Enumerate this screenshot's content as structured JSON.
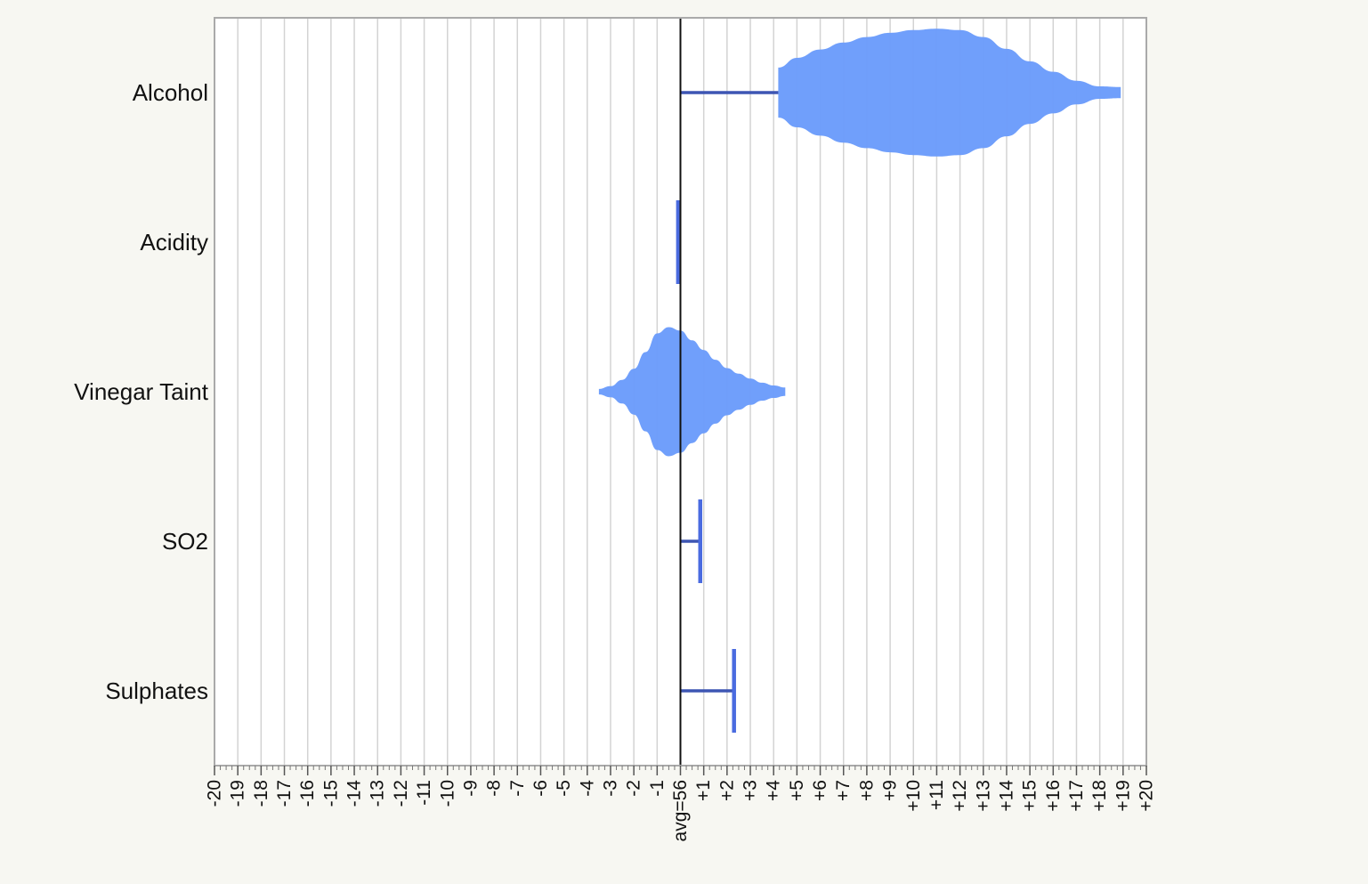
{
  "chart_data": {
    "type": "violin",
    "orientation": "horizontal",
    "categories": [
      "Alcohol",
      "Acidity",
      "Vinegar Taint",
      "SO2",
      "Sulphates"
    ],
    "xlim": [
      -20,
      20
    ],
    "baseline": 0,
    "baseline_label": "avg=56",
    "tick_labels": [
      "-20",
      "-19",
      "-18",
      "-17",
      "-16",
      "-15",
      "-14",
      "-13",
      "-12",
      "-11",
      "-10",
      "-9",
      "-8",
      "-7",
      "-6",
      "-5",
      "-4",
      "-3",
      "-2",
      "-1",
      "avg=56",
      "+1",
      "+2",
      "+3",
      "+4",
      "+5",
      "+6",
      "+7",
      "+8",
      "+9",
      "+10",
      "+11",
      "+12",
      "+13",
      "+14",
      "+15",
      "+16",
      "+17",
      "+18",
      "+19",
      "+20"
    ],
    "grid": true,
    "series": [
      {
        "category": "Alcohol",
        "whisker": [
          0,
          4.2
        ],
        "violin": {
          "x": [
            4.2,
            5,
            6,
            7,
            8,
            9,
            10,
            11,
            12,
            13,
            14,
            15,
            16,
            17,
            18,
            18.9
          ],
          "half_width": [
            0.36,
            0.5,
            0.62,
            0.72,
            0.8,
            0.86,
            0.9,
            0.92,
            0.9,
            0.8,
            0.63,
            0.45,
            0.3,
            0.17,
            0.09,
            0.08
          ]
        }
      },
      {
        "category": "Acidity",
        "whisker": [
          -0.1,
          0
        ],
        "end_cap": -0.1
      },
      {
        "category": "Vinegar Taint",
        "violin": {
          "x": [
            -3.5,
            -3.0,
            -2.5,
            -2.0,
            -1.5,
            -1.0,
            -0.5,
            0,
            0.5,
            1.0,
            1.5,
            2.0,
            2.5,
            3.0,
            3.5,
            4.0,
            4.5
          ],
          "half_width": [
            0.04,
            0.08,
            0.17,
            0.33,
            0.57,
            0.84,
            0.93,
            0.88,
            0.74,
            0.6,
            0.46,
            0.34,
            0.26,
            0.19,
            0.13,
            0.09,
            0.06
          ]
        }
      },
      {
        "category": "SO2",
        "whisker": [
          0,
          0.85
        ],
        "end_cap": 0.85
      },
      {
        "category": "Sulphates",
        "whisker": [
          0,
          2.3
        ],
        "end_cap": 2.3
      }
    ],
    "colors": {
      "violin_fill": "#6b9cfb",
      "whisker": "#3d55b3",
      "end_cap": "#4a6be0",
      "baseline": "#111111",
      "grid": "#d3d3d3",
      "frame": "#aaaaaa",
      "plot_background": "#ffffff"
    }
  }
}
